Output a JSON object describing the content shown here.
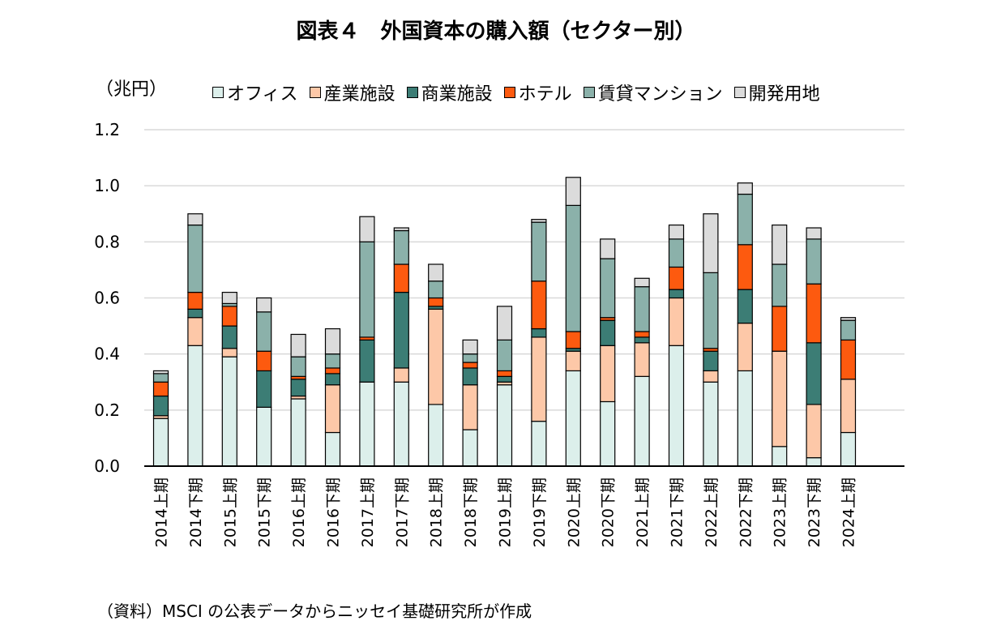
{
  "chart_data": {
    "type": "bar",
    "stacked": true,
    "title": "図表４　外国資本の購入額（セクター別）",
    "ylabel": "（兆円）",
    "ylim": [
      0,
      1.2
    ],
    "yticks": [
      "0.0",
      "0.2",
      "0.4",
      "0.6",
      "0.8",
      "1.0",
      "1.2"
    ],
    "grid": true,
    "legend_position": "top",
    "categories": [
      "2014上期",
      "2014下期",
      "2015上期",
      "2015下期",
      "2016上期",
      "2016下期",
      "2017上期",
      "2017下期",
      "2018上期",
      "2018下期",
      "2019上期",
      "2019下期",
      "2020上期",
      "2020下期",
      "2021上期",
      "2021下期",
      "2022上期",
      "2022下期",
      "2023上期",
      "2023下期",
      "2024上期"
    ],
    "series": [
      {
        "name": "オフィス",
        "color": "#dcefeb",
        "values": [
          0.17,
          0.43,
          0.39,
          0.21,
          0.24,
          0.12,
          0.3,
          0.3,
          0.22,
          0.13,
          0.29,
          0.16,
          0.34,
          0.23,
          0.32,
          0.43,
          0.3,
          0.34,
          0.07,
          0.03,
          0.12
        ]
      },
      {
        "name": "産業施設",
        "color": "#fdc8a8",
        "values": [
          0.01,
          0.1,
          0.03,
          0.0,
          0.01,
          0.17,
          0.0,
          0.05,
          0.34,
          0.16,
          0.01,
          0.3,
          0.07,
          0.2,
          0.12,
          0.17,
          0.04,
          0.17,
          0.34,
          0.19,
          0.19
        ]
      },
      {
        "name": "商業施設",
        "color": "#3c7d75",
        "values": [
          0.07,
          0.03,
          0.08,
          0.13,
          0.06,
          0.04,
          0.15,
          0.27,
          0.01,
          0.06,
          0.02,
          0.03,
          0.01,
          0.09,
          0.02,
          0.03,
          0.07,
          0.12,
          0.0,
          0.22,
          0.0
        ]
      },
      {
        "name": "ホテル",
        "color": "#fd5a0f",
        "values": [
          0.05,
          0.06,
          0.07,
          0.07,
          0.01,
          0.02,
          0.01,
          0.1,
          0.03,
          0.02,
          0.02,
          0.17,
          0.06,
          0.01,
          0.02,
          0.08,
          0.01,
          0.16,
          0.16,
          0.21,
          0.14
        ]
      },
      {
        "name": "賃貸マンション",
        "color": "#8bb1aa",
        "values": [
          0.03,
          0.24,
          0.01,
          0.14,
          0.07,
          0.05,
          0.34,
          0.12,
          0.06,
          0.03,
          0.11,
          0.21,
          0.45,
          0.21,
          0.16,
          0.1,
          0.27,
          0.18,
          0.15,
          0.16,
          0.07
        ]
      },
      {
        "name": "開発用地",
        "color": "#dbdbdb",
        "values": [
          0.01,
          0.04,
          0.04,
          0.05,
          0.08,
          0.09,
          0.09,
          0.01,
          0.06,
          0.05,
          0.12,
          0.01,
          0.1,
          0.07,
          0.03,
          0.05,
          0.21,
          0.04,
          0.14,
          0.04,
          0.01
        ]
      }
    ]
  },
  "source_note": "（資料）MSCI の公表データからニッセイ基礎研究所が作成"
}
